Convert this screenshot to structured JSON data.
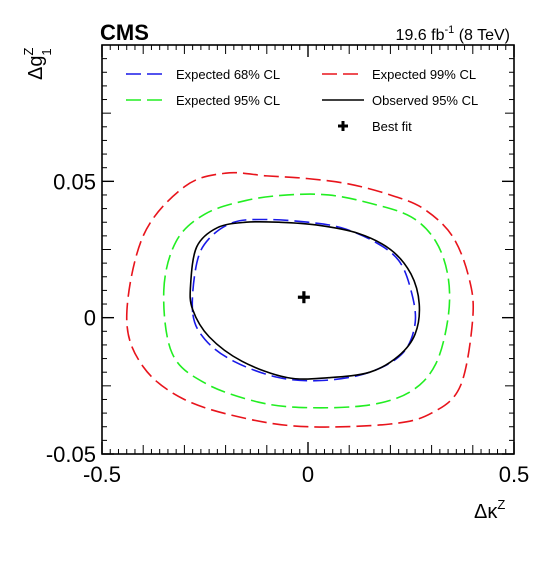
{
  "chart_data": {
    "type": "contour",
    "experiment_label": "CMS",
    "luminosity": {
      "value": "19.6 fb",
      "exponent": "-1",
      "energy": " (8 TeV)"
    },
    "xlabel": {
      "main": "Δκ",
      "superscript": "Z"
    },
    "ylabel": {
      "main": "Δg",
      "superscript": "Z",
      "subscript": "1"
    },
    "xlim": [
      -0.5,
      0.5
    ],
    "ylim": [
      -0.05,
      0.1
    ],
    "x_ticks": [
      {
        "value": -0.5,
        "label": "-0.5"
      },
      {
        "value": 0,
        "label": "0"
      },
      {
        "value": 0.5,
        "label": "0.5"
      }
    ],
    "y_ticks": [
      {
        "value": -0.05,
        "label": "-0.05"
      },
      {
        "value": 0,
        "label": "0"
      },
      {
        "value": 0.05,
        "label": "0.05"
      }
    ],
    "best_fit": {
      "name": "Best fit",
      "x": -0.01,
      "y": 0.0075
    },
    "series": [
      {
        "name": "Expected 99% CL",
        "color": "#e8141c",
        "dash": "long-dash",
        "points": [
          [
            -0.44,
            0.0
          ],
          [
            -0.4,
            0.03
          ],
          [
            -0.3,
            0.048
          ],
          [
            -0.2,
            0.053
          ],
          [
            -0.1,
            0.052
          ],
          [
            0.0,
            0.051
          ],
          [
            0.1,
            0.049
          ],
          [
            0.2,
            0.045
          ],
          [
            0.28,
            0.04
          ],
          [
            0.35,
            0.03
          ],
          [
            0.39,
            0.015
          ],
          [
            0.4,
            0.0
          ],
          [
            0.37,
            -0.025
          ],
          [
            0.3,
            -0.035
          ],
          [
            0.2,
            -0.039
          ],
          [
            0.0,
            -0.04
          ],
          [
            -0.15,
            -0.037
          ],
          [
            -0.3,
            -0.03
          ],
          [
            -0.4,
            -0.018
          ]
        ]
      },
      {
        "name": "Expected 95% CL",
        "color": "#22ee22",
        "dash": "long-dash",
        "points": [
          [
            -0.35,
            0.01
          ],
          [
            -0.32,
            0.028
          ],
          [
            -0.25,
            0.038
          ],
          [
            -0.15,
            0.043
          ],
          [
            -0.05,
            0.045
          ],
          [
            0.05,
            0.045
          ],
          [
            0.15,
            0.042
          ],
          [
            0.25,
            0.037
          ],
          [
            0.31,
            0.028
          ],
          [
            0.34,
            0.015
          ],
          [
            0.34,
            0.0
          ],
          [
            0.31,
            -0.017
          ],
          [
            0.25,
            -0.027
          ],
          [
            0.15,
            -0.032
          ],
          [
            0.0,
            -0.033
          ],
          [
            -0.12,
            -0.031
          ],
          [
            -0.25,
            -0.024
          ],
          [
            -0.33,
            -0.013
          ]
        ]
      },
      {
        "name": "Expected 68% CL",
        "color": "#1a1ae8",
        "dash": "long-dash",
        "points": [
          [
            -0.28,
            0.002
          ],
          [
            -0.27,
            0.02
          ],
          [
            -0.24,
            0.029
          ],
          [
            -0.18,
            0.035
          ],
          [
            -0.1,
            0.036
          ],
          [
            0.0,
            0.035
          ],
          [
            0.08,
            0.033
          ],
          [
            0.16,
            0.028
          ],
          [
            0.22,
            0.021
          ],
          [
            0.25,
            0.01
          ],
          [
            0.26,
            -0.002
          ],
          [
            0.23,
            -0.013
          ],
          [
            0.15,
            -0.02
          ],
          [
            0.04,
            -0.023
          ],
          [
            -0.07,
            -0.022
          ],
          [
            -0.18,
            -0.016
          ],
          [
            -0.25,
            -0.008
          ]
        ]
      },
      {
        "name": "Observed 95% CL",
        "color": "#000000",
        "dash": "solid",
        "points": [
          [
            -0.285,
            0.012
          ],
          [
            -0.27,
            0.026
          ],
          [
            -0.22,
            0.033
          ],
          [
            -0.15,
            0.035
          ],
          [
            -0.07,
            0.035
          ],
          [
            0.02,
            0.034
          ],
          [
            0.12,
            0.031
          ],
          [
            0.2,
            0.025
          ],
          [
            0.25,
            0.016
          ],
          [
            0.27,
            0.005
          ],
          [
            0.26,
            -0.006
          ],
          [
            0.22,
            -0.014
          ],
          [
            0.15,
            -0.02
          ],
          [
            0.05,
            -0.022
          ],
          [
            -0.05,
            -0.022
          ],
          [
            -0.16,
            -0.016
          ],
          [
            -0.24,
            -0.007
          ],
          [
            -0.28,
            0.003
          ]
        ]
      }
    ],
    "legend": {
      "placement": "top",
      "entries": [
        {
          "label": "Expected 68% CL",
          "color": "#1a1ae8",
          "style": "long-dash"
        },
        {
          "label": "Expected 99% CL",
          "color": "#e8141c",
          "style": "long-dash"
        },
        {
          "label": "Expected 95% CL",
          "color": "#22ee22",
          "style": "long-dash"
        },
        {
          "label": "Observed 95% CL",
          "color": "#000000",
          "style": "solid"
        },
        {
          "label": "Best fit",
          "color": "#000000",
          "style": "cross-marker"
        }
      ]
    },
    "grid": false
  }
}
